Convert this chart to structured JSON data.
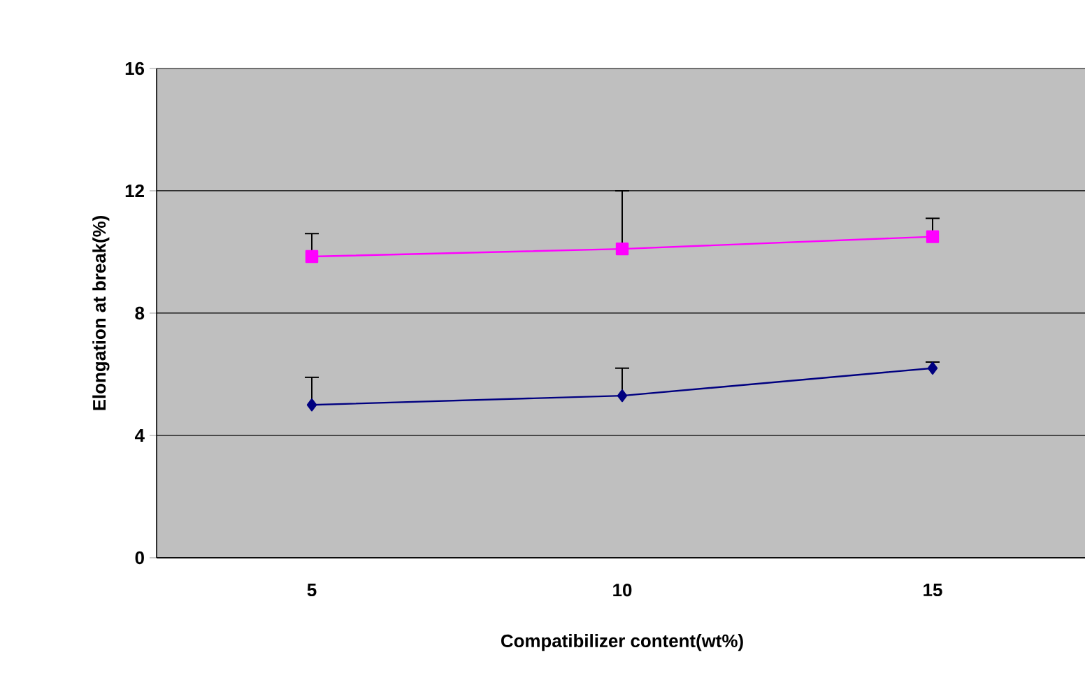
{
  "chart_data": {
    "type": "line",
    "xlabel": "Compatibilizer content(wt%)",
    "ylabel": "Elongation at break(%)",
    "categories": [
      "5",
      "10",
      "15"
    ],
    "series": [
      {
        "color": "#ff00ff",
        "marker": "square",
        "values": [
          9.85,
          10.1,
          10.5
        ],
        "errors": [
          [
            9.85,
            10.6
          ],
          [
            10.1,
            12.0
          ],
          [
            10.5,
            11.1
          ]
        ]
      },
      {
        "color": "#000080",
        "marker": "diamond",
        "values": [
          5.0,
          5.3,
          6.2
        ],
        "errors": [
          [
            5.0,
            5.9
          ],
          [
            5.3,
            6.2
          ],
          [
            6.2,
            6.4
          ]
        ]
      }
    ],
    "ylim": [
      0,
      16
    ],
    "yticks": [
      0,
      4,
      8,
      12,
      16
    ],
    "grid": "y"
  }
}
